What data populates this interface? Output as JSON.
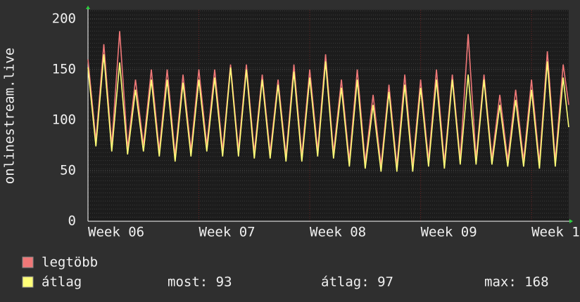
{
  "chart_data": {
    "type": "line",
    "y_label": "onlinestream.live",
    "x": [
      0,
      0.5,
      1,
      1.5,
      2,
      2.5,
      3,
      3.5,
      4,
      4.5,
      5,
      5.5,
      6,
      6.5,
      7,
      7.5,
      8,
      8.5,
      9,
      9.5,
      10,
      10.5,
      11,
      11.5,
      12,
      12.5,
      13,
      13.5,
      14,
      14.5,
      15,
      15.5,
      16,
      16.5,
      17,
      17.5,
      18,
      18.5,
      19,
      19.5,
      20,
      20.5,
      21,
      21.5,
      22,
      22.5,
      23,
      23.5,
      24,
      24.5,
      25,
      25.5,
      26,
      26.5,
      27,
      27.5,
      28,
      28.5,
      29,
      29.5,
      30,
      30.35
    ],
    "series": [
      {
        "name": "legtöbb",
        "color": "#f07878",
        "values": [
          160,
          80,
          175,
          75,
          188,
          72,
          140,
          75,
          150,
          70,
          150,
          65,
          145,
          70,
          150,
          75,
          150,
          70,
          155,
          70,
          155,
          68,
          145,
          68,
          140,
          65,
          155,
          65,
          150,
          70,
          165,
          68,
          140,
          60,
          150,
          58,
          125,
          55,
          135,
          55,
          145,
          55,
          140,
          60,
          150,
          58,
          145,
          62,
          185,
          62,
          145,
          62,
          125,
          60,
          130,
          60,
          140,
          58,
          168,
          60,
          155,
          115
        ]
      },
      {
        "name": "átlag",
        "color": "#ffff78",
        "values": [
          152,
          74,
          165,
          69,
          157,
          66,
          130,
          69,
          140,
          64,
          140,
          59,
          137,
          64,
          140,
          69,
          142,
          64,
          152,
          64,
          150,
          62,
          140,
          62,
          135,
          59,
          148,
          59,
          142,
          64,
          158,
          62,
          132,
          54,
          140,
          52,
          115,
          49,
          128,
          49,
          135,
          49,
          132,
          54,
          140,
          52,
          140,
          56,
          145,
          56,
          140,
          56,
          115,
          54,
          120,
          54,
          130,
          52,
          158,
          54,
          142,
          93
        ]
      }
    ],
    "stats": [
      "most: 93",
      "átlag: 97",
      "max: 168"
    ],
    "xlim": [
      0,
      30.35
    ],
    "xticks": [
      {
        "value": 0,
        "label": "Week 06"
      },
      {
        "value": 7,
        "label": "Week 07"
      },
      {
        "value": 14,
        "label": "Week 08"
      },
      {
        "value": 21,
        "label": "Week 09"
      },
      {
        "value": 28,
        "label": "Week 1"
      }
    ],
    "ylim": [
      0,
      209
    ],
    "yticks": [
      0,
      50,
      100,
      150,
      200
    ],
    "grid": true
  }
}
